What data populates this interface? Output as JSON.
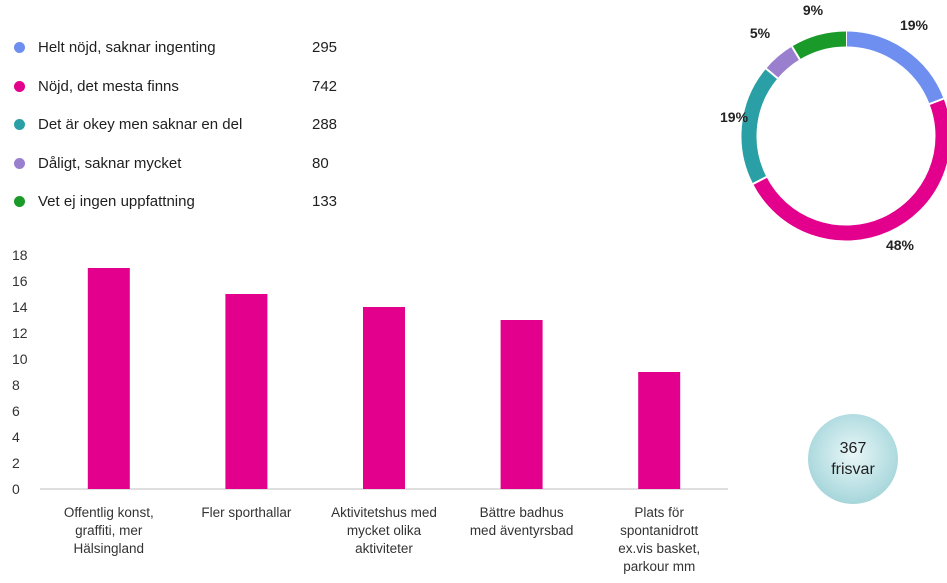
{
  "legend": [
    {
      "label": "Helt nöjd, saknar ingenting",
      "count": "295",
      "color": "#6e8ff0"
    },
    {
      "label": "Nöjd, det mesta finns",
      "count": "742",
      "color": "#e3008c"
    },
    {
      "label": "Det är okey men saknar en del",
      "count": "288",
      "color": "#2a9fa5"
    },
    {
      "label": "Dåligt, saknar mycket",
      "count": "80",
      "color": "#9b7fcf"
    },
    {
      "label": "Vet ej ingen uppfattning",
      "count": "133",
      "color": "#1a9a28"
    }
  ],
  "badge": {
    "number": "367",
    "label": "frisvar"
  },
  "chart_data": [
    {
      "type": "pie",
      "variant": "donut",
      "categories": [
        "Helt nöjd, saknar ingenting",
        "Nöjd, det mesta finns",
        "Det är okey men saknar en del",
        "Dåligt, saknar mycket",
        "Vet ej ingen uppfattning"
      ],
      "values": [
        295,
        742,
        288,
        80,
        133
      ],
      "labels": [
        "19%",
        "48%",
        "19%",
        "5%",
        "9%"
      ],
      "colors": [
        "#6e8ff0",
        "#e3008c",
        "#2a9fa5",
        "#9b7fcf",
        "#1a9a28"
      ]
    },
    {
      "type": "bar",
      "categories": [
        [
          "Offentlig konst,",
          "graffiti, mer",
          "Hälsingland"
        ],
        [
          "Fler sporthallar"
        ],
        [
          "Aktivitetshus med",
          "mycket olika",
          "aktiviteter"
        ],
        [
          "Bättre badhus",
          "med äventyrsbad"
        ],
        [
          "Plats för",
          "spontanidrott",
          "ex.vis basket,",
          "parkour mm"
        ]
      ],
      "values": [
        17,
        15,
        14,
        13,
        9
      ],
      "ylim": [
        0,
        18
      ],
      "yticks": [
        0,
        2,
        4,
        6,
        8,
        10,
        12,
        14,
        16,
        18
      ],
      "color": "#e3008c",
      "grid": false
    }
  ]
}
